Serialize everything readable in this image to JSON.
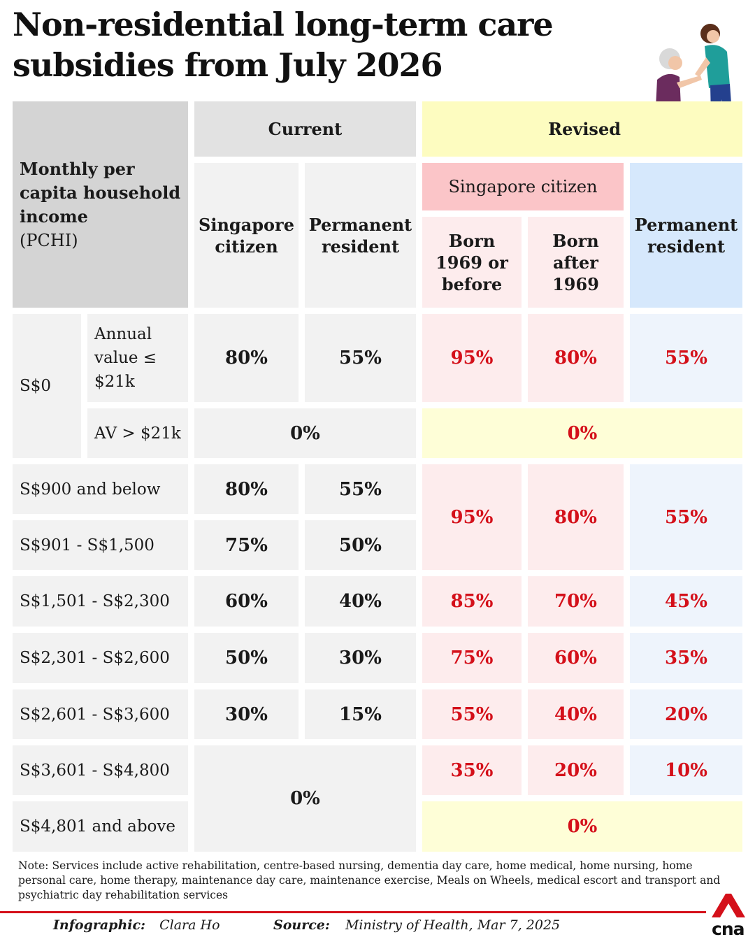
{
  "title": "Non-residential long-term care subsidies from July 2026",
  "chart_data": {
    "type": "table",
    "title": "Non-residential long-term care subsidies from July 2026",
    "row_header": {
      "label_bold": "Monthly per capita household income",
      "label_suffix": "(PCHI)"
    },
    "column_groups": {
      "current": "Current",
      "revised": "Revised",
      "singapore_citizen": "Singapore citizen",
      "permanent_resident": "Permanent resident",
      "born_before": "Born 1969 or before",
      "born_after": "Born after 1969"
    },
    "row_labels": {
      "s0": "S$0",
      "av_le": "Annual value ≤ $21k",
      "av_gt": "AV > $21k",
      "r900": "S$900 and below",
      "r1500": "S$901 - S$1,500",
      "r2300": "S$1,501 - S$2,300",
      "r2600": "S$2,301 - S$2,600",
      "r3600": "S$2,601 - S$3,600",
      "r4800": "S$3,601 - S$4,800",
      "r4801": "S$4,801 and above"
    },
    "values": {
      "av_le": {
        "cur_sc": "80%",
        "cur_pr": "55%",
        "rev_sc_before": "95%",
        "rev_sc_after": "80%",
        "rev_pr": "55%"
      },
      "av_gt": {
        "current": "0%",
        "revised": "0%"
      },
      "r900": {
        "cur_sc": "80%",
        "cur_pr": "55%"
      },
      "r1500": {
        "cur_sc": "75%",
        "cur_pr": "50%"
      },
      "r900_1500_revised": {
        "rev_sc_before": "95%",
        "rev_sc_after": "80%",
        "rev_pr": "55%"
      },
      "r2300": {
        "cur_sc": "60%",
        "cur_pr": "40%",
        "rev_sc_before": "85%",
        "rev_sc_after": "70%",
        "rev_pr": "45%"
      },
      "r2600": {
        "cur_sc": "50%",
        "cur_pr": "30%",
        "rev_sc_before": "75%",
        "rev_sc_after": "60%",
        "rev_pr": "35%"
      },
      "r3600": {
        "cur_sc": "30%",
        "cur_pr": "15%",
        "rev_sc_before": "55%",
        "rev_sc_after": "40%",
        "rev_pr": "20%"
      },
      "r4800": {
        "rev_sc_before": "35%",
        "rev_sc_after": "20%",
        "rev_pr": "10%"
      },
      "r4800_4801_current": "0%",
      "r4801": {
        "revised": "0%"
      }
    },
    "colors": {
      "revised_values": "#d4101a",
      "revised_header": "#fdfcc0",
      "citizen_header": "#fbc5c8",
      "pr_header": "#d6e8fc"
    }
  },
  "note": "Note: Services include active rehabilitation, centre-based nursing, dementia day care, home medical, home nursing, home personal care, home therapy, maintenance day care, maintenance exercise, Meals on Wheels, medical escort and transport and psychiatric day rehabilitation services",
  "credits": {
    "infographic_label": "Infographic:",
    "infographic_name": "Clara Ho",
    "source_label": "Source:",
    "source_name": "Ministry of Health, Mar 7, 2025"
  },
  "logo_text": "cna",
  "icons": {
    "illustration": "carer-assisting-elderly-woman-illustration",
    "logo": "cna-logo-icon"
  }
}
